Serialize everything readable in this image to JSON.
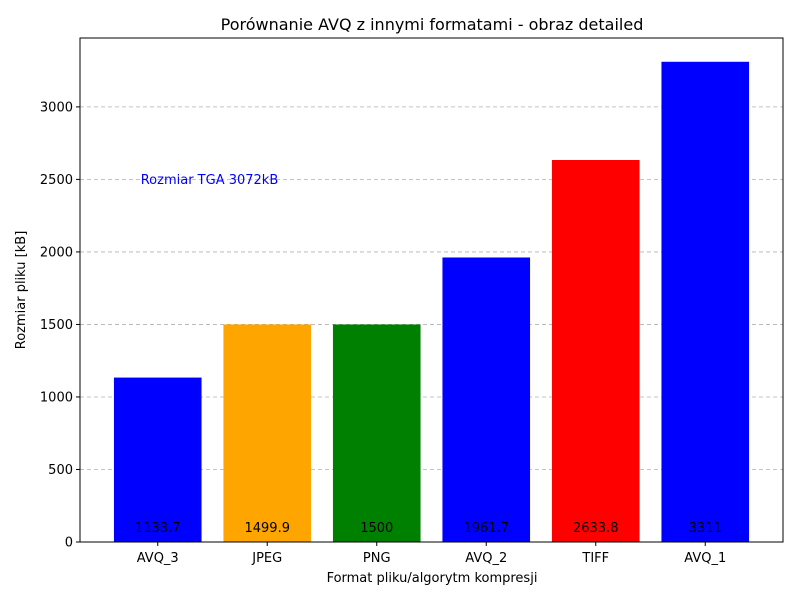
{
  "chart_data": {
    "type": "bar",
    "title": "Porównanie AVQ z innymi formatami - obraz detailed",
    "xlabel": "Format pliku/algorytm kompresji",
    "ylabel": "Rozmiar pliku [kB]",
    "categories": [
      "AVQ_3",
      "JPEG",
      "PNG",
      "AVQ_2",
      "TIFF",
      "AVQ_1"
    ],
    "values": [
      1133.7,
      1499.9,
      1500,
      1961.7,
      2633.8,
      3311
    ],
    "value_labels": [
      "1133.7",
      "1499.9",
      "1500",
      "1961.7",
      "2633.8",
      "3311"
    ],
    "colors": [
      "#0000ff",
      "#ffa500",
      "#008000",
      "#0000ff",
      "#ff0000",
      "#0000ff"
    ],
    "ylim": [
      0,
      3475
    ],
    "yticks": [
      0,
      500,
      1000,
      1500,
      2000,
      2500,
      3000
    ],
    "grid": "y-dashed",
    "annotation": {
      "text": "Rozmiar TGA 3072kB",
      "y": 2500,
      "color": "#0000ff"
    }
  }
}
